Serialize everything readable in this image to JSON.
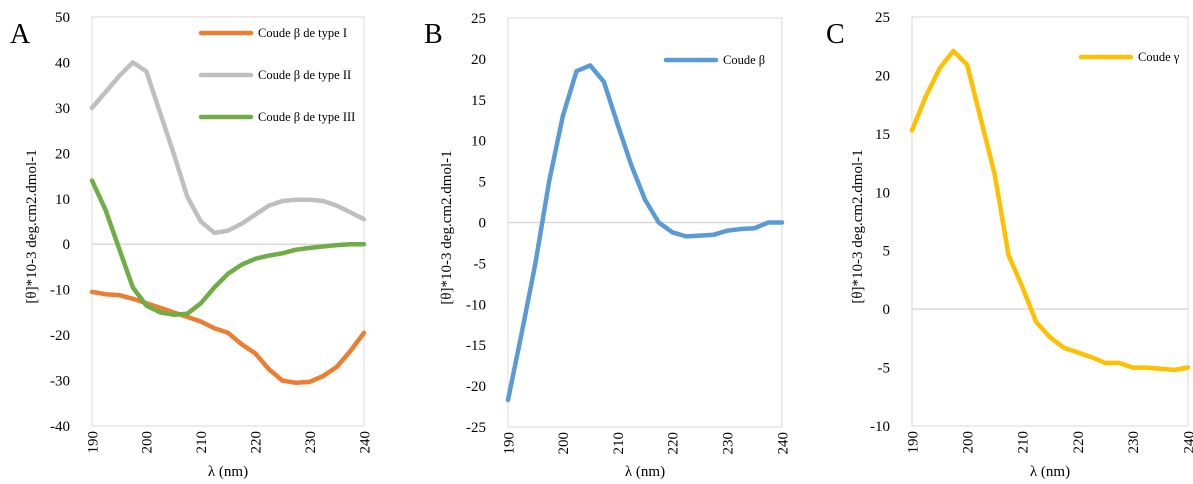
{
  "chart_data": [
    {
      "type": "line",
      "panel_label": "A",
      "xlabel": "λ (nm)",
      "ylabel": "[θ]*10-3 deg.cm2.dmol-1",
      "xlim": [
        190,
        240
      ],
      "ylim": [
        -40,
        50
      ],
      "x_ticks": [
        190,
        200,
        210,
        220,
        230,
        240
      ],
      "y_ticks": [
        -40,
        -30,
        -20,
        -10,
        0,
        10,
        20,
        30,
        40,
        50
      ],
      "grid": false,
      "zero_line": true,
      "legend_position": "top-right",
      "series": [
        {
          "name": "Coude β de type I",
          "color": "#ED7D31",
          "x": [
            190,
            192.5,
            195,
            197.5,
            200,
            202.5,
            205,
            207.5,
            210,
            212.5,
            215,
            217.5,
            220,
            222.5,
            225,
            227.5,
            230,
            232.5,
            235,
            237.5,
            240
          ],
          "y": [
            -10.5,
            -11,
            -11.2,
            -12,
            -13,
            -14,
            -15,
            -16,
            -17,
            -18.5,
            -19.5,
            -22,
            -24,
            -27.5,
            -30,
            -30.5,
            -30.3,
            -29,
            -27,
            -23.5,
            -19.5
          ]
        },
        {
          "name": "Coude β de type II",
          "color": "#BFBFBF",
          "x": [
            190,
            192.5,
            195,
            197.5,
            200,
            202.5,
            205,
            207.5,
            210,
            212.5,
            215,
            217.5,
            220,
            222.5,
            225,
            227.5,
            230,
            232.5,
            235,
            237.5,
            240
          ],
          "y": [
            30,
            33.5,
            37,
            40,
            38,
            29,
            20,
            10.5,
            5,
            2.5,
            3,
            4.5,
            6.5,
            8.5,
            9.5,
            9.8,
            9.8,
            9.5,
            8.5,
            7,
            5.5
          ]
        },
        {
          "name": "Coude β de type III",
          "color": "#70AD47",
          "x": [
            190,
            192.5,
            195,
            197.5,
            200,
            202.5,
            205,
            207.5,
            210,
            212.5,
            215,
            217.5,
            220,
            222.5,
            225,
            227.5,
            230,
            232.5,
            235,
            237.5,
            240
          ],
          "y": [
            14,
            7.5,
            -1,
            -9.5,
            -13.5,
            -15,
            -15.5,
            -15.3,
            -13,
            -9.5,
            -6.5,
            -4.5,
            -3.2,
            -2.5,
            -2,
            -1.2,
            -0.8,
            -0.5,
            -0.2,
            0,
            0
          ]
        }
      ]
    },
    {
      "type": "line",
      "panel_label": "B",
      "xlabel": "λ (nm)",
      "ylabel": "[θ]*10-3 deg.cm2.dmol-1",
      "xlim": [
        190,
        240
      ],
      "ylim": [
        -25,
        25
      ],
      "x_ticks": [
        190,
        200,
        210,
        220,
        230,
        240
      ],
      "y_ticks": [
        -25,
        -20,
        -15,
        -10,
        -5,
        0,
        5,
        10,
        15,
        20,
        25
      ],
      "grid": false,
      "zero_line": true,
      "legend_position": "top-right",
      "series": [
        {
          "name": "Coude β",
          "color": "#5B9BD5",
          "x": [
            190,
            192.5,
            195,
            197.5,
            200,
            202.5,
            205,
            207.5,
            210,
            212.5,
            215,
            217.5,
            220,
            222.5,
            225,
            227.5,
            230,
            232.5,
            235,
            237.5,
            240
          ],
          "y": [
            -21.7,
            -13.5,
            -5,
            5,
            13,
            18.5,
            19.2,
            17.2,
            12,
            7,
            2.8,
            0,
            -1.2,
            -1.7,
            -1.6,
            -1.5,
            -1,
            -0.8,
            -0.7,
            0,
            0
          ]
        }
      ]
    },
    {
      "type": "line",
      "panel_label": "C",
      "xlabel": "λ (nm)",
      "ylabel": "[θ]*10-3 deg.cm2.dmol-1",
      "xlim": [
        190,
        240
      ],
      "ylim": [
        -10,
        25
      ],
      "x_ticks": [
        190,
        200,
        210,
        220,
        230,
        240
      ],
      "y_ticks": [
        -10,
        -5,
        0,
        5,
        10,
        15,
        20,
        25
      ],
      "grid": false,
      "zero_line": true,
      "legend_position": "top-right",
      "series": [
        {
          "name": "Coude γ",
          "color": "#FFC000",
          "x": [
            190,
            192.5,
            195,
            197.5,
            200,
            202.5,
            205,
            207.5,
            210,
            212.5,
            215,
            217.5,
            220,
            222.5,
            225,
            227.5,
            230,
            232.5,
            235,
            237.5,
            240
          ],
          "y": [
            15.3,
            18.2,
            20.6,
            22.1,
            20.9,
            16.2,
            11.5,
            4.6,
            1.9,
            -1.1,
            -2.4,
            -3.3,
            -3.7,
            -4.1,
            -4.6,
            -4.6,
            -5,
            -5,
            -5.1,
            -5.2,
            -5
          ]
        }
      ]
    }
  ]
}
